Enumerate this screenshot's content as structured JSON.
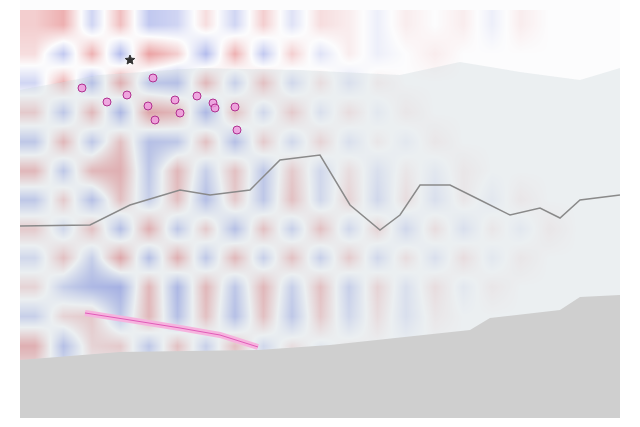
{
  "chart_data": {
    "type": "heatmap",
    "tick_labels": false,
    "grid": false,
    "zlim": [
      -1,
      1
    ],
    "z": [
      [
        0.3,
        0.5,
        -0.3,
        0.4,
        -0.4,
        -0.3,
        0.2,
        -0.3,
        0.3,
        -0.2,
        0.2,
        0.1,
        -0.1,
        0.1,
        0,
        0.1,
        -0.1,
        0.1,
        0,
        0,
        0
      ],
      [
        0.2,
        -0.4,
        0.5,
        -0.5,
        0.6,
        0.3,
        -0.5,
        0.5,
        -0.4,
        0.3,
        -0.2,
        0.1,
        -0.1,
        0,
        0.1,
        0,
        0,
        0,
        0,
        0,
        0
      ],
      [
        -0.3,
        0.5,
        -0.6,
        0.7,
        -0.5,
        -0.6,
        0.6,
        -0.4,
        0.5,
        -0.3,
        0.2,
        -0.2,
        0.1,
        0,
        0,
        0,
        0,
        0,
        0,
        0,
        0
      ],
      [
        0.4,
        -0.5,
        0.6,
        -0.7,
        0.8,
        0.6,
        -0.7,
        0.5,
        -0.3,
        0.4,
        -0.2,
        0.2,
        -0.1,
        0.1,
        0,
        0,
        0,
        0,
        0,
        0,
        0
      ],
      [
        -0.5,
        0.6,
        -0.5,
        0.5,
        -0.6,
        -0.5,
        0.5,
        -0.6,
        0.4,
        -0.3,
        0.3,
        -0.2,
        0.1,
        -0.1,
        0.1,
        0,
        0,
        0,
        0,
        0,
        0
      ],
      [
        0.6,
        -0.5,
        0.6,
        0.7,
        -0.5,
        0.6,
        -0.4,
        0.5,
        -0.5,
        0.4,
        -0.3,
        0.2,
        -0.2,
        0.1,
        -0.1,
        0.1,
        0,
        0,
        0,
        0,
        0
      ],
      [
        -0.5,
        0.4,
        -0.6,
        0.5,
        -0.4,
        0.5,
        -0.6,
        0.4,
        -0.5,
        0.5,
        -0.3,
        0.3,
        -0.3,
        0.2,
        -0.2,
        0.1,
        -0.1,
        0.1,
        0,
        0,
        0
      ],
      [
        0.4,
        -0.3,
        0.5,
        -0.6,
        0.7,
        -0.5,
        0.4,
        -0.6,
        0.5,
        -0.4,
        0.5,
        -0.3,
        0.3,
        -0.3,
        0.2,
        -0.2,
        0.1,
        -0.1,
        0.1,
        0,
        0
      ],
      [
        -0.3,
        0.5,
        -0.4,
        0.8,
        -0.6,
        0.7,
        -0.5,
        0.6,
        -0.4,
        0.5,
        -0.4,
        0.4,
        -0.3,
        0.2,
        -0.2,
        0.2,
        -0.1,
        0.1,
        0,
        0,
        0
      ],
      [
        0.3,
        -0.4,
        -0.7,
        -0.8,
        0.6,
        -0.7,
        0.6,
        -0.5,
        0.6,
        -0.4,
        0.5,
        -0.4,
        0.3,
        -0.2,
        0.2,
        -0.1,
        0.1,
        0,
        0,
        0,
        0
      ],
      [
        -0.4,
        0.3,
        0.4,
        -0.5,
        0.6,
        -0.6,
        0.5,
        -0.6,
        0.5,
        -0.5,
        0.4,
        -0.3,
        0.2,
        -0.2,
        0.1,
        0,
        0,
        0,
        0,
        0,
        0
      ],
      [
        0.7,
        -0.6,
        0.3,
        0.4,
        -0.5,
        0.5,
        -0.4,
        0.5,
        -0.3,
        0.2,
        -0.1,
        0.1,
        0,
        0,
        0,
        0,
        0,
        0,
        0,
        0,
        0
      ],
      [
        0.1,
        -0.1,
        0,
        0,
        0,
        0,
        0,
        0,
        0,
        0,
        0,
        0,
        0,
        0,
        0,
        0,
        0,
        0,
        0,
        0,
        0
      ],
      [
        0,
        0,
        0,
        0,
        0,
        0,
        0,
        0,
        0,
        0,
        0,
        0,
        0,
        0,
        0,
        0,
        0,
        0,
        0,
        0,
        0
      ]
    ]
  }
}
